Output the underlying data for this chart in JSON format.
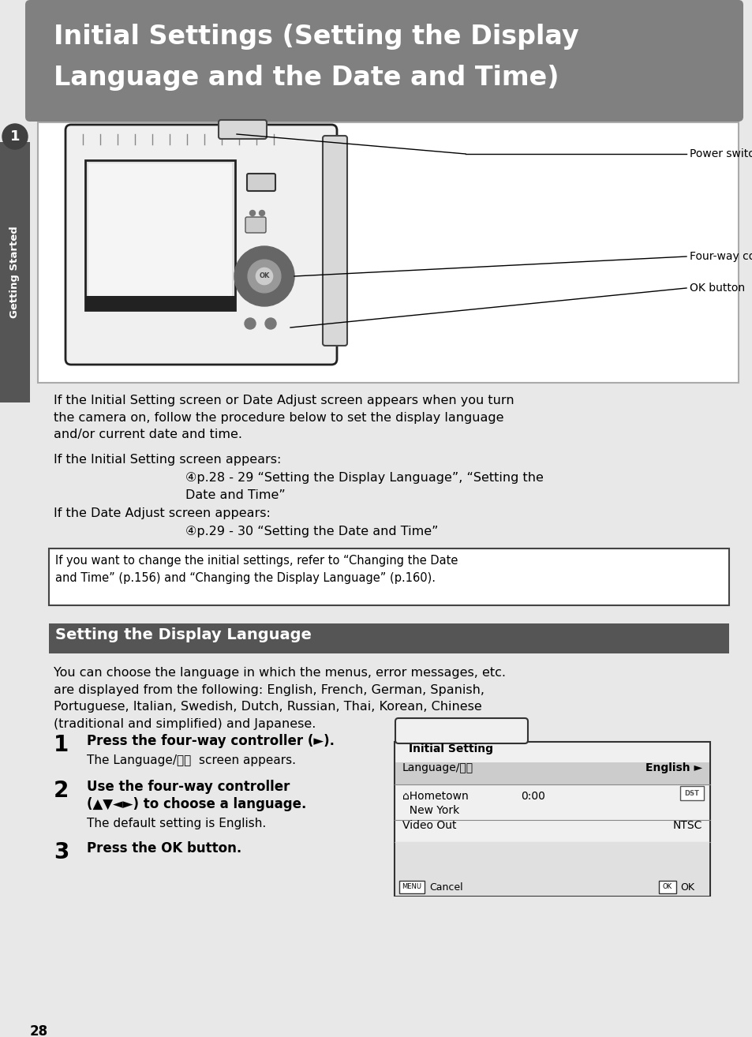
{
  "page_bg": "#e8e8e8",
  "content_bg": "#ffffff",
  "header_bg": "#808080",
  "header_text_line1": "Initial Settings (Setting the Display",
  "header_text_line2": "Language and the Date and Time)",
  "header_text_color": "#ffffff",
  "sidebar_bg": "#555555",
  "sidebar_text": "Getting Started",
  "sidebar_number": "1",
  "section2_bg": "#555555",
  "section2_text": "Setting the Display Language",
  "para1": "If the Initial Setting screen or Date Adjust screen appears when you turn\nthe camera on, follow the procedure below to set the display language\nand/or current date and time.",
  "para2_label": "If the Initial Setting screen appears:",
  "para2_ref_line1": "④p.28 - 29 “Setting the Display Language”, “Setting the",
  "para2_ref_line2": "Date and Time”",
  "para3_label": "If the Date Adjust screen appears:",
  "para3_ref": "④p.29 - 30 “Setting the Date and Time”",
  "note_text": "If you want to change the initial settings, refer to “Changing the Date\nand Time” (p.156) and “Changing the Display Language” (p.160).",
  "section2_body": "You can choose the language in which the menus, error messages, etc.\nare displayed from the following: English, French, German, Spanish,\nPortuguese, Italian, Swedish, Dutch, Russian, Thai, Korean, Chinese\n(traditional and simplified) and Japanese.",
  "step1_bold": "Press the four-way controller (►).",
  "step1_sub": "The Language/言語  screen appears.",
  "step2_bold_line1": "Use the four-way controller",
  "step2_bold_line2": "(▲▼◄►) to choose a language.",
  "step2_sub": "The default setting is English.",
  "step3_bold": "Press the OK button.",
  "camera_label1": "Power switch",
  "camera_label2": "Four-way controller",
  "camera_label3": "OK button",
  "ui_title": "Initial Setting",
  "ui_row1_label": "Language/言語",
  "ui_row1_value": "English ►",
  "ui_row2_label1": "⌂Hometown",
  "ui_row2_label2": "  New York",
  "ui_row2_value": "0:00",
  "ui_row3_label": "Video Out",
  "ui_row3_value": "NTSC",
  "ui_footer_left": "MENU Cancel",
  "ui_footer_right": "OK  OK",
  "page_number": "28"
}
